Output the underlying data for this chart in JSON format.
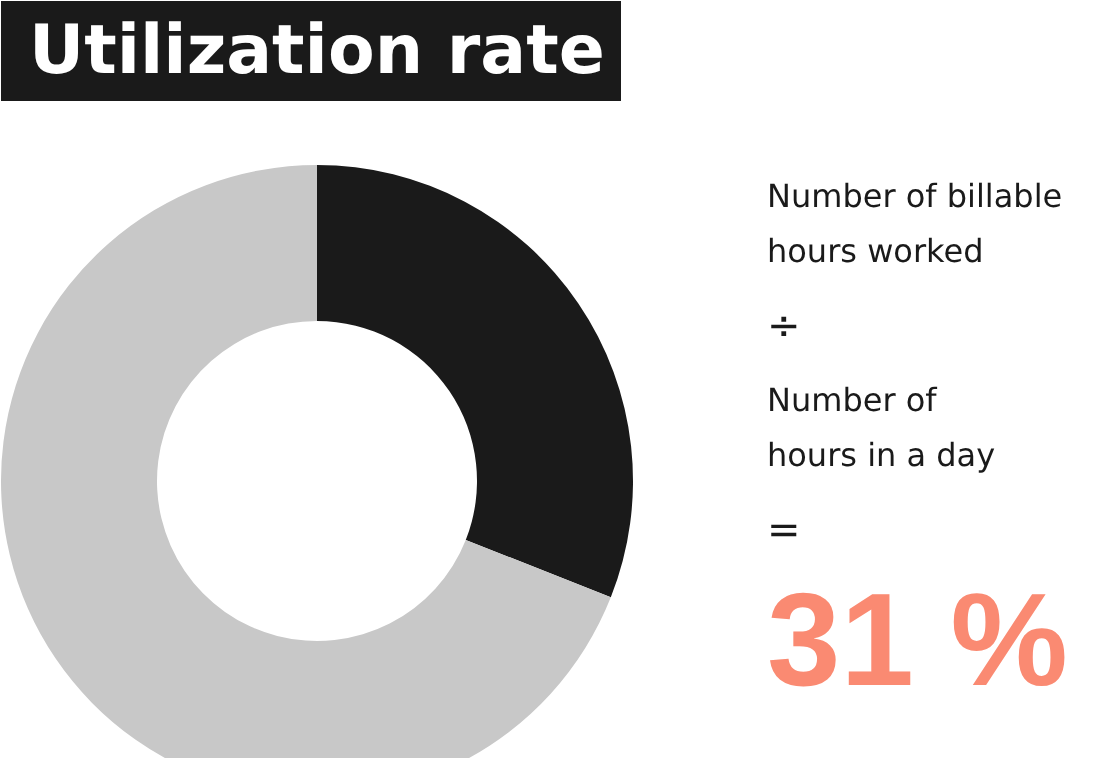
{
  "chart_data": {
    "type": "donut",
    "title": "Utilization rate",
    "categories": [
      null,
      null
    ],
    "values": [
      31,
      69
    ],
    "colors": [
      "#1a1a1a",
      "#c8c8c8"
    ],
    "annotations": [
      "Number of billable\nhours worked",
      "÷",
      "Number of\nhours in a day",
      "=",
      "31 %"
    ]
  }
}
